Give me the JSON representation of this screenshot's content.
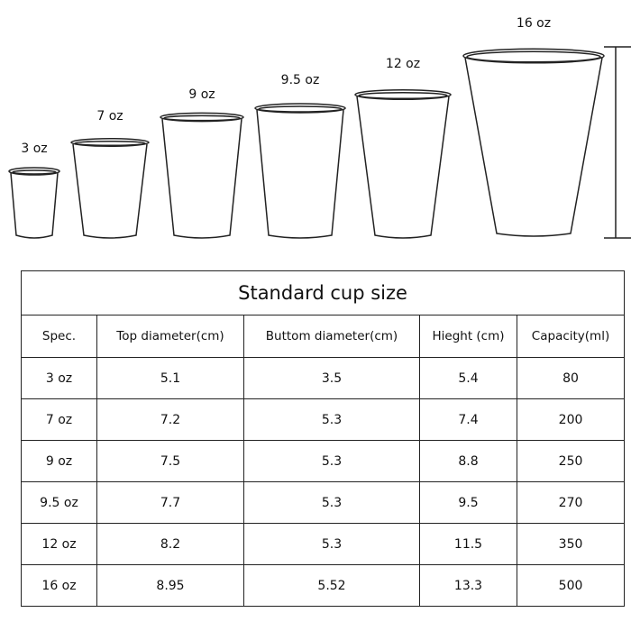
{
  "cups": [
    {
      "label": "3 oz"
    },
    {
      "label": "7 oz"
    },
    {
      "label": "9 oz"
    },
    {
      "label": "9.5 oz"
    },
    {
      "label": "12 oz"
    },
    {
      "label": "16 oz"
    }
  ],
  "table": {
    "title": "Standard cup size",
    "headers": [
      "Spec.",
      "Top diameter(cm)",
      "Buttom diameter(cm)",
      "Hieght (cm)",
      "Capacity(ml)"
    ],
    "rows": [
      [
        "3 oz",
        "5.1",
        "3.5",
        "5.4",
        "80"
      ],
      [
        "7 oz",
        "7.2",
        "5.3",
        "7.4",
        "200"
      ],
      [
        "9 oz",
        "7.5",
        "5.3",
        "8.8",
        "250"
      ],
      [
        "9.5 oz",
        "7.7",
        "5.3",
        "9.5",
        "270"
      ],
      [
        "12 oz",
        "8.2",
        "5.3",
        "11.5",
        "350"
      ],
      [
        "16 oz",
        "8.95",
        "5.52",
        "13.3",
        "500"
      ]
    ]
  }
}
